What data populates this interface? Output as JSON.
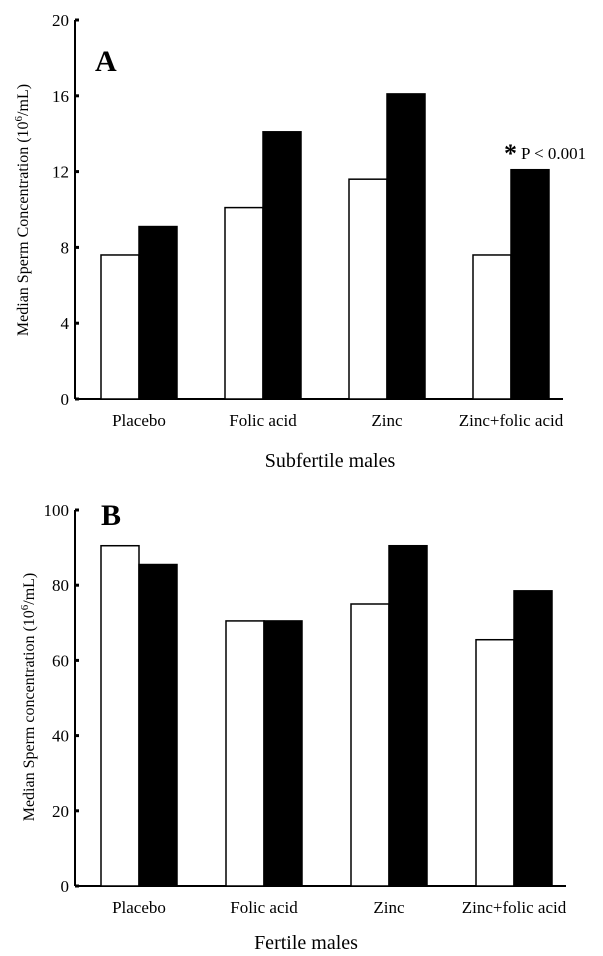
{
  "chart_data": [
    {
      "type": "bar",
      "panel_letter": "A",
      "categories": [
        "Placebo",
        "Folic acid",
        "Zinc",
        "Zinc+folic acid"
      ],
      "series": [
        {
          "color": "#ffffff",
          "values": [
            7.6,
            10.1,
            11.6,
            7.6
          ]
        },
        {
          "color": "#000000",
          "values": [
            9.1,
            14.1,
            16.1,
            12.1
          ]
        }
      ],
      "xlabel": "Subfertile males",
      "ylabel_pre": "Median Sperm Concentration (10",
      "ylabel_sup": "6",
      "ylabel_post": "/mL)",
      "ylim": [
        0,
        20
      ],
      "yticks": [
        0,
        4,
        8,
        12,
        16,
        20
      ],
      "annotation_star": "*",
      "annotation_text": "P < 0.001"
    },
    {
      "type": "bar",
      "panel_letter": "B",
      "categories": [
        "Placebo",
        "Folic acid",
        "Zinc",
        "Zinc+folic acid"
      ],
      "series": [
        {
          "color": "#ffffff",
          "values": [
            90.5,
            70.5,
            75,
            65.5
          ]
        },
        {
          "color": "#000000",
          "values": [
            85.5,
            70.5,
            90.5,
            78.5
          ]
        }
      ],
      "xlabel": "Fertile males",
      "ylabel_pre": "Median Sperm concentration (10",
      "ylabel_sup": "6",
      "ylabel_post": "/mL)",
      "ylim": [
        0,
        100
      ],
      "yticks": [
        0,
        20,
        40,
        60,
        80,
        100
      ]
    }
  ]
}
